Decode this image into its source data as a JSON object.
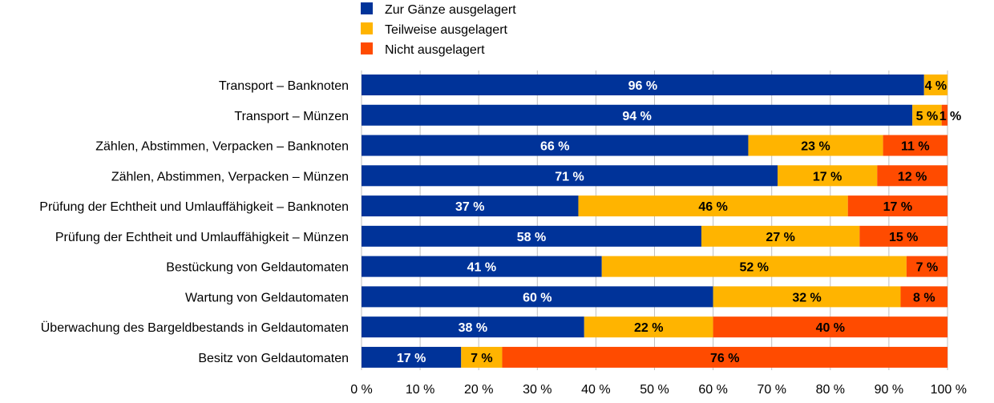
{
  "chart_data": {
    "type": "bar",
    "orientation": "horizontal",
    "stacked": true,
    "categories": [
      "Transport – Banknoten",
      "Transport – Münzen",
      "Zählen, Abstimmen, Verpacken – Banknoten",
      "Zählen, Abstimmen, Verpacken – Münzen",
      "Prüfung der Echtheit und Umlauffähigkeit – Banknoten",
      "Prüfung der Echtheit und Umlauffähigkeit – Münzen",
      "Bestückung von Geldautomaten",
      "Wartung von Geldautomaten",
      "Überwachung des Bargeldbestands in Geldautomaten",
      "Besitz von Geldautomaten"
    ],
    "series": [
      {
        "name": "Zur Gänze ausgelagert",
        "color": "#003399",
        "label_color": "#ffffff",
        "values": [
          96,
          94,
          66,
          71,
          37,
          58,
          41,
          60,
          38,
          17
        ],
        "labels": [
          "96 %",
          "94 %",
          "66 %",
          "71 %",
          "37 %",
          "58 %",
          "41 %",
          "60 %",
          "38 %",
          "17 %"
        ]
      },
      {
        "name": "Teilweise ausgelagert",
        "color": "#ffb400",
        "label_color": "#000000",
        "values": [
          4,
          5,
          23,
          17,
          46,
          27,
          52,
          32,
          22,
          7
        ],
        "labels": [
          "4 %",
          "5 %",
          "23 %",
          "17 %",
          "46 %",
          "27 %",
          "52 %",
          "32 %",
          "22 %",
          "7 %"
        ]
      },
      {
        "name": "Nicht ausgelagert",
        "color": "#ff4b00",
        "label_color": "#000000",
        "values": [
          0,
          1,
          11,
          12,
          17,
          15,
          7,
          8,
          40,
          76
        ],
        "labels": [
          "",
          "1 %",
          "11 %",
          "12 %",
          "17 %",
          "15 %",
          "7 %",
          "8 %",
          "40 %",
          "76 %"
        ]
      }
    ],
    "xlim": [
      0,
      100
    ],
    "xticks": [
      0,
      10,
      20,
      30,
      40,
      50,
      60,
      70,
      80,
      90,
      100
    ],
    "xtick_labels": [
      "0 %",
      "10 %",
      "20 %",
      "30 %",
      "40 %",
      "50 %",
      "60 %",
      "70 %",
      "80 %",
      "90 %",
      "100 %"
    ],
    "grid": "vertical",
    "legend_position": "top"
  }
}
